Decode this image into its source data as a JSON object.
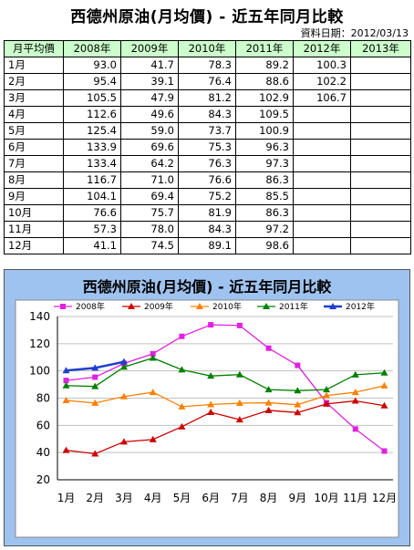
{
  "header": {
    "title": "西德州原油(月均價) - 近五年同月比較",
    "date_label": "資料日期：2012/03/13"
  },
  "table": {
    "columns": [
      "月平均價",
      "2008年",
      "2009年",
      "2010年",
      "2011年",
      "2012年",
      "2013年"
    ],
    "rows": [
      [
        "1月",
        "93.0",
        "41.7",
        "78.3",
        "89.2",
        "100.3",
        ""
      ],
      [
        "2月",
        "95.4",
        "39.1",
        "76.4",
        "88.6",
        "102.2",
        ""
      ],
      [
        "3月",
        "105.5",
        "47.9",
        "81.2",
        "102.9",
        "106.7",
        ""
      ],
      [
        "4月",
        "112.6",
        "49.6",
        "84.3",
        "109.5",
        "",
        ""
      ],
      [
        "5月",
        "125.4",
        "59.0",
        "73.7",
        "100.9",
        "",
        ""
      ],
      [
        "6月",
        "133.9",
        "69.6",
        "75.3",
        "96.3",
        "",
        ""
      ],
      [
        "7月",
        "133.4",
        "64.2",
        "76.3",
        "97.3",
        "",
        ""
      ],
      [
        "8月",
        "116.7",
        "71.0",
        "76.6",
        "86.3",
        "",
        ""
      ],
      [
        "9月",
        "104.1",
        "69.4",
        "75.2",
        "85.5",
        "",
        ""
      ],
      [
        "10月",
        "76.6",
        "75.7",
        "81.9",
        "86.3",
        "",
        ""
      ],
      [
        "11月",
        "57.3",
        "78.0",
        "84.3",
        "97.2",
        "",
        ""
      ],
      [
        "12月",
        "41.1",
        "74.5",
        "89.1",
        "98.6",
        "",
        ""
      ]
    ]
  },
  "chart_data": {
    "type": "line",
    "title": "西德州原油(月均價) - 近五年同月比較",
    "xlabel": "",
    "ylabel": "",
    "categories": [
      "1月",
      "2月",
      "3月",
      "4月",
      "5月",
      "6月",
      "7月",
      "8月",
      "9月",
      "10月",
      "11月",
      "12月"
    ],
    "ylim": [
      20,
      140
    ],
    "yticks": [
      20,
      40,
      60,
      80,
      100,
      120,
      140
    ],
    "grid": true,
    "legend": "top",
    "series": [
      {
        "name": "2008年",
        "color": "#e020e0",
        "marker": "square",
        "values": [
          93.0,
          95.4,
          105.5,
          112.6,
          125.4,
          133.9,
          133.4,
          116.7,
          104.1,
          76.6,
          57.3,
          41.1
        ]
      },
      {
        "name": "2009年",
        "color": "#cc0000",
        "marker": "triangle",
        "values": [
          41.7,
          39.1,
          47.9,
          49.6,
          59.0,
          69.6,
          64.2,
          71.0,
          69.4,
          75.7,
          78.0,
          74.5
        ]
      },
      {
        "name": "2010年",
        "color": "#ff8000",
        "marker": "triangle",
        "values": [
          78.3,
          76.4,
          81.2,
          84.3,
          73.7,
          75.3,
          76.3,
          76.6,
          75.2,
          81.9,
          84.3,
          89.1
        ]
      },
      {
        "name": "2011年",
        "color": "#008000",
        "marker": "triangle",
        "values": [
          89.2,
          88.6,
          102.9,
          109.5,
          100.9,
          96.3,
          97.3,
          86.3,
          85.5,
          86.3,
          97.2,
          98.6
        ]
      },
      {
        "name": "2012年",
        "color": "#1f3fcf",
        "marker": "triangle",
        "values": [
          100.3,
          102.2,
          106.7,
          null,
          null,
          null,
          null,
          null,
          null,
          null,
          null,
          null
        ]
      }
    ]
  }
}
